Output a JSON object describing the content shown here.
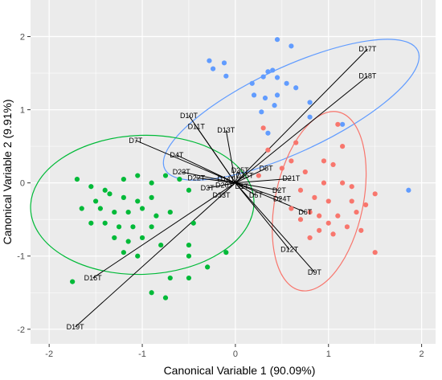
{
  "chart_data": {
    "type": "scatter",
    "title": "",
    "xlabel": "Canonical Variable 1 (90.09%)",
    "ylabel": "Canonical Variable 2  (9.91%)",
    "xlim": [
      -2.2,
      2.15
    ],
    "ylim": [
      -2.2,
      2.5
    ],
    "xticks": [
      -2,
      -1,
      0,
      1,
      2
    ],
    "yticks": [
      -2,
      -1,
      0,
      1,
      2
    ],
    "grid": true,
    "legend": "none",
    "colors": {
      "panel_bg": "#ebebeb",
      "grid": "#ffffff",
      "blue": "#619CFF",
      "red": "#F8766D",
      "green": "#00BA38",
      "vector": "#000000"
    },
    "series": [
      {
        "color": "#619CFF",
        "ellipse": {
          "cx": 0.6,
          "cy": 1.0,
          "rx": 1.5,
          "ry": 0.58,
          "angle_deg": -25
        },
        "points": [
          [
            0.45,
            1.96
          ],
          [
            0.6,
            1.87
          ],
          [
            -0.28,
            1.67
          ],
          [
            -0.12,
            1.64
          ],
          [
            -0.24,
            1.56
          ],
          [
            -0.1,
            1.46
          ],
          [
            0.35,
            1.52
          ],
          [
            0.4,
            1.54
          ],
          [
            0.3,
            1.45
          ],
          [
            0.45,
            1.44
          ],
          [
            0.18,
            1.36
          ],
          [
            0.55,
            1.36
          ],
          [
            0.65,
            1.3
          ],
          [
            0.2,
            1.2
          ],
          [
            0.32,
            1.16
          ],
          [
            0.45,
            1.2
          ],
          [
            0.42,
            1.06
          ],
          [
            0.8,
            1.1
          ],
          [
            0.28,
            0.97
          ],
          [
            0.8,
            0.9
          ],
          [
            1.15,
            0.8
          ],
          [
            0.35,
            0.68
          ],
          [
            1.86,
            -0.1
          ]
        ]
      },
      {
        "color": "#F8766D",
        "ellipse": {
          "cx": 0.9,
          "cy": -0.25,
          "rx": 0.98,
          "ry": 0.6,
          "angle_deg": -78
        },
        "points": [
          [
            0.3,
            0.75
          ],
          [
            0.65,
            0.55
          ],
          [
            0.35,
            0.45
          ],
          [
            0.6,
            0.3
          ],
          [
            1.15,
            0.5
          ],
          [
            0.95,
            0.3
          ],
          [
            1.05,
            0.25
          ],
          [
            0.75,
            0.15
          ],
          [
            0.5,
            0.2
          ],
          [
            0.25,
            0.1
          ],
          [
            0.95,
            0.0
          ],
          [
            1.15,
            0.0
          ],
          [
            1.25,
            -0.05
          ],
          [
            1.5,
            -0.15
          ],
          [
            0.7,
            -0.1
          ],
          [
            0.85,
            -0.2
          ],
          [
            1.0,
            -0.25
          ],
          [
            1.25,
            -0.25
          ],
          [
            1.4,
            -0.3
          ],
          [
            0.6,
            -0.35
          ],
          [
            0.8,
            -0.4
          ],
          [
            0.9,
            -0.45
          ],
          [
            1.1,
            -0.45
          ],
          [
            1.3,
            -0.4
          ],
          [
            0.7,
            -0.5
          ],
          [
            1.0,
            -0.55
          ],
          [
            1.2,
            -0.6
          ],
          [
            0.9,
            -0.65
          ],
          [
            1.35,
            -0.65
          ],
          [
            1.05,
            -0.7
          ],
          [
            0.8,
            -0.75
          ],
          [
            1.5,
            -0.95
          ],
          [
            1.1,
            0.8
          ]
        ]
      },
      {
        "color": "#00BA38",
        "ellipse": {
          "cx": -1.0,
          "cy": -0.3,
          "rx": 1.2,
          "ry": 0.95,
          "angle_deg": -2
        },
        "points": [
          [
            -1.7,
            0.05
          ],
          [
            -1.55,
            -0.05
          ],
          [
            -1.4,
            -0.1
          ],
          [
            -1.2,
            0.05
          ],
          [
            -1.05,
            0.1
          ],
          [
            -0.9,
            0.0
          ],
          [
            -0.75,
            0.1
          ],
          [
            -0.6,
            0.05
          ],
          [
            -0.5,
            -0.1
          ],
          [
            -1.5,
            -0.25
          ],
          [
            -1.35,
            -0.15
          ],
          [
            -1.2,
            -0.2
          ],
          [
            -1.05,
            -0.25
          ],
          [
            -0.9,
            -0.2
          ],
          [
            -1.65,
            -0.35
          ],
          [
            -1.45,
            -0.35
          ],
          [
            -1.3,
            -0.4
          ],
          [
            -1.15,
            -0.4
          ],
          [
            -1.0,
            -0.35
          ],
          [
            -0.85,
            -0.45
          ],
          [
            -0.7,
            -0.4
          ],
          [
            -1.55,
            -0.55
          ],
          [
            -1.4,
            -0.55
          ],
          [
            -1.25,
            -0.6
          ],
          [
            -1.1,
            -0.6
          ],
          [
            -0.9,
            -0.6
          ],
          [
            -0.45,
            -0.55
          ],
          [
            -1.3,
            -0.75
          ],
          [
            -1.15,
            -0.8
          ],
          [
            -1.0,
            -0.75
          ],
          [
            -0.8,
            -0.85
          ],
          [
            -0.5,
            -0.85
          ],
          [
            -1.2,
            -0.95
          ],
          [
            -1.05,
            -1.0
          ],
          [
            -0.5,
            -1.0
          ],
          [
            -0.1,
            -0.95
          ],
          [
            -0.3,
            -1.15
          ],
          [
            -0.7,
            -1.3
          ],
          [
            -0.5,
            -1.3
          ],
          [
            -1.75,
            -1.35
          ],
          [
            -0.9,
            -1.5
          ],
          [
            -0.75,
            -1.57
          ]
        ]
      }
    ],
    "vectors": [
      {
        "label": "D17T",
        "x": 1.42,
        "y": 1.83
      },
      {
        "label": "D18T",
        "x": 1.42,
        "y": 1.46
      },
      {
        "label": "D10T",
        "x": -0.5,
        "y": 0.92
      },
      {
        "label": "D11T",
        "x": -0.42,
        "y": 0.77
      },
      {
        "label": "D13T",
        "x": -0.1,
        "y": 0.72
      },
      {
        "label": "D7T",
        "x": -1.07,
        "y": 0.58
      },
      {
        "label": "D4T",
        "x": -0.63,
        "y": 0.38
      },
      {
        "label": "D23T",
        "x": -0.58,
        "y": 0.15
      },
      {
        "label": "D22T",
        "x": -0.42,
        "y": 0.07
      },
      {
        "label": "D8T",
        "x": 0.33,
        "y": 0.2
      },
      {
        "label": "D21T",
        "x": 0.6,
        "y": 0.06
      },
      {
        "label": "D2T",
        "x": 0.47,
        "y": -0.1
      },
      {
        "label": "D24T",
        "x": 0.5,
        "y": -0.22
      },
      {
        "label": "D6T",
        "x": 0.75,
        "y": -0.4
      },
      {
        "label": "D12T",
        "x": 0.58,
        "y": -0.91
      },
      {
        "label": "D9T",
        "x": 0.85,
        "y": -1.22
      },
      {
        "label": "D16T",
        "x": -1.53,
        "y": -1.3
      },
      {
        "label": "D19T",
        "x": -1.72,
        "y": -1.97
      },
      {
        "label": "D5T",
        "x": 0.22,
        "y": -0.17
      },
      {
        "label": "D3T",
        "x": -0.3,
        "y": -0.07
      },
      {
        "label": "D33T",
        "x": -0.15,
        "y": -0.17
      },
      {
        "label": "D25T",
        "x": 0.05,
        "y": 0.17
      },
      {
        "label": "D1T",
        "x": 0.07,
        "y": -0.05
      },
      {
        "label": "D14T",
        "x": -0.1,
        "y": 0.05
      },
      {
        "label": "D15T",
        "x": 0.1,
        "y": 0.1
      },
      {
        "label": "D20T",
        "x": -0.12,
        "y": -0.03
      }
    ]
  }
}
